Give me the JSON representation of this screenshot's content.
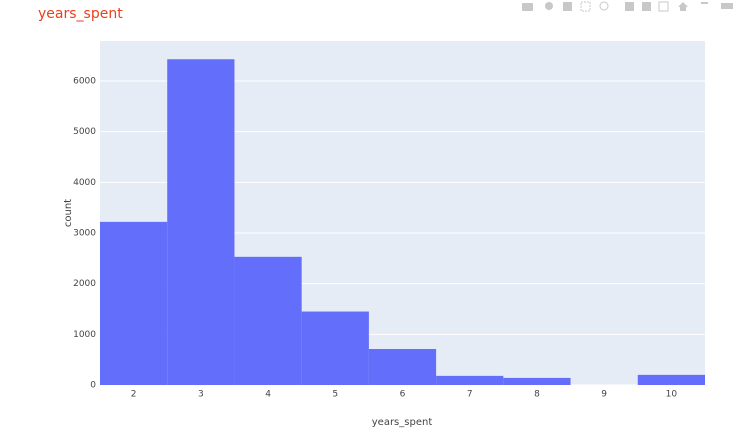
{
  "chart_data": {
    "type": "histogram",
    "title": "years_spent",
    "x_label": "years_spent",
    "y_label": "count",
    "bins": [
      1.5,
      2.5,
      3.5,
      4.5,
      5.5,
      6.5,
      7.5,
      8.5,
      9.5,
      10.5
    ],
    "values": [
      3220,
      6430,
      2530,
      1450,
      710,
      180,
      140,
      0,
      200
    ],
    "color": "#636efa",
    "xlim": [
      1.5,
      10.5
    ],
    "xticks": [
      2,
      3,
      4,
      5,
      6,
      7,
      8,
      9,
      10
    ],
    "ylim": [
      0,
      6790
    ],
    "yticks": [
      0,
      1000,
      2000,
      3000,
      4000,
      5000,
      6000
    ],
    "grid": true
  }
}
